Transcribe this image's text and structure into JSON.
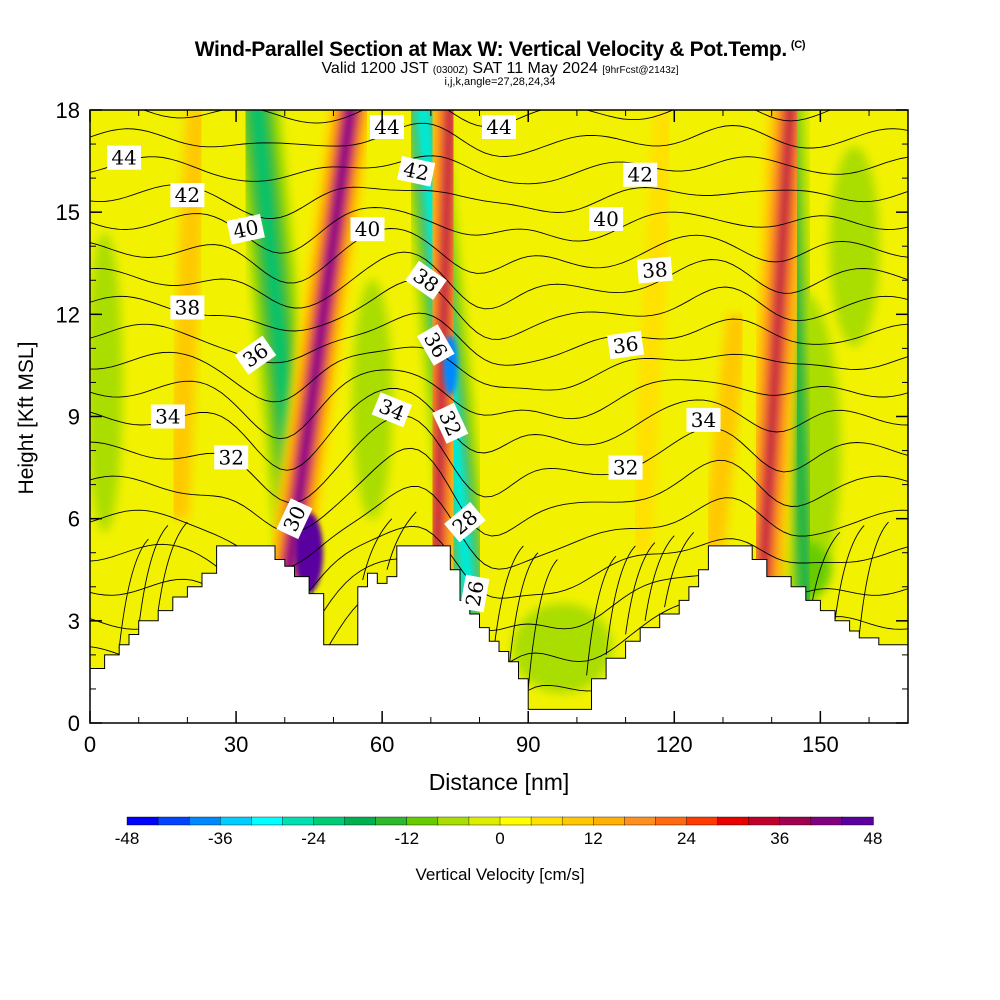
{
  "header": {
    "title": "Wind-Parallel Section at Max W: Vertical Velocity & Pot.Temp.",
    "copyright": "(C)",
    "valid_prefix": "Valid 1200 JST",
    "valid_utc": "(0300Z)",
    "valid_date": "SAT 11 May 2024",
    "fcst_info": "[9hrFcst@2143z]",
    "indices": "i,j,k,angle=27,28,24,34"
  },
  "chart_data": {
    "type": "heatmap",
    "xlabel": "Distance [nm]",
    "ylabel": "Height [Kft MSL]",
    "xlim": [
      0,
      168
    ],
    "ylim": [
      0,
      18
    ],
    "x_ticks": [
      0,
      30,
      60,
      90,
      120,
      150
    ],
    "y_ticks": [
      0,
      3,
      6,
      9,
      12,
      15,
      18
    ],
    "colorbar": {
      "label": "Vertical Velocity [cm/s]",
      "ticks": [
        -48,
        -36,
        -24,
        -12,
        0,
        12,
        24,
        36,
        48
      ],
      "colors": [
        "#0000ff",
        "#0044ff",
        "#0088ff",
        "#00ccff",
        "#00ffff",
        "#00e0b0",
        "#00cc77",
        "#00b050",
        "#2eb82e",
        "#66cc00",
        "#aadd00",
        "#dded00",
        "#ffff00",
        "#ffe000",
        "#ffc800",
        "#ffb000",
        "#ff9020",
        "#ff6a10",
        "#ff3a00",
        "#e80000",
        "#c0002a",
        "#a00050",
        "#800080",
        "#5a00a0"
      ]
    },
    "updraft_bands": [
      {
        "x_bottom": 40,
        "x_top": 54,
        "peak": 44
      },
      {
        "x_bottom": 71,
        "x_top": 74,
        "peak": 36
      },
      {
        "x_bottom": 138,
        "x_top": 144,
        "peak": 36
      }
    ],
    "downdraft_bands": [
      {
        "x_bottom": 44,
        "x_top": 34,
        "peak": -24
      },
      {
        "x_bottom": 78,
        "x_top": 68,
        "peak": -30
      },
      {
        "x_bottom": 147,
        "x_top": 143,
        "peak": -20
      }
    ],
    "terrain": [
      [
        0,
        1.6
      ],
      [
        3,
        1.6
      ],
      [
        3,
        2
      ],
      [
        6,
        2
      ],
      [
        6,
        2.3
      ],
      [
        8,
        2.3
      ],
      [
        8,
        2.6
      ],
      [
        10,
        2.6
      ],
      [
        10,
        3
      ],
      [
        14,
        3
      ],
      [
        14,
        3.3
      ],
      [
        17,
        3.3
      ],
      [
        17,
        3.7
      ],
      [
        20,
        3.7
      ],
      [
        20,
        4
      ],
      [
        23,
        4
      ],
      [
        23,
        4.4
      ],
      [
        26,
        4.4
      ],
      [
        26,
        5.2
      ],
      [
        38,
        5.2
      ],
      [
        38,
        4.8
      ],
      [
        40,
        4.8
      ],
      [
        40,
        4.6
      ],
      [
        42,
        4.6
      ],
      [
        42,
        4.3
      ],
      [
        45,
        4.3
      ],
      [
        45,
        3.8
      ],
      [
        48,
        3.8
      ],
      [
        48,
        2.3
      ],
      [
        55,
        2.3
      ],
      [
        55,
        4.0
      ],
      [
        57,
        4.0
      ],
      [
        57,
        4.4
      ],
      [
        59,
        4.4
      ],
      [
        59,
        4.1
      ],
      [
        61,
        4.1
      ],
      [
        61,
        4.3
      ],
      [
        63,
        4.3
      ],
      [
        63,
        5.2
      ],
      [
        74,
        5.2
      ],
      [
        74,
        4.5
      ],
      [
        76,
        4.5
      ],
      [
        76,
        3.6
      ],
      [
        78,
        3.6
      ],
      [
        78,
        3.2
      ],
      [
        80,
        3.2
      ],
      [
        80,
        2.8
      ],
      [
        82,
        2.8
      ],
      [
        82,
        2.4
      ],
      [
        84,
        2.4
      ],
      [
        84,
        2.1
      ],
      [
        86,
        2.1
      ],
      [
        86,
        1.8
      ],
      [
        88,
        1.8
      ],
      [
        88,
        1.3
      ],
      [
        90,
        1.3
      ],
      [
        90,
        0.4
      ],
      [
        103,
        0.4
      ],
      [
        103,
        1.3
      ],
      [
        106,
        1.3
      ],
      [
        106,
        1.9
      ],
      [
        110,
        1.9
      ],
      [
        110,
        2.4
      ],
      [
        113,
        2.4
      ],
      [
        113,
        2.8
      ],
      [
        117,
        2.8
      ],
      [
        117,
        3.2
      ],
      [
        121,
        3.2
      ],
      [
        121,
        3.6
      ],
      [
        123,
        3.6
      ],
      [
        123,
        4.0
      ],
      [
        125,
        4.0
      ],
      [
        125,
        4.5
      ],
      [
        127,
        4.5
      ],
      [
        127,
        5.2
      ],
      [
        136,
        5.2
      ],
      [
        136,
        4.8
      ],
      [
        139,
        4.8
      ],
      [
        139,
        4.3
      ],
      [
        144,
        4.3
      ],
      [
        144,
        4.0
      ],
      [
        147,
        4.0
      ],
      [
        147,
        3.6
      ],
      [
        150,
        3.6
      ],
      [
        150,
        3.3
      ],
      [
        153,
        3.3
      ],
      [
        153,
        3.0
      ],
      [
        156,
        3.0
      ],
      [
        156,
        2.7
      ],
      [
        158,
        2.7
      ],
      [
        158,
        2.5
      ],
      [
        162,
        2.5
      ],
      [
        162,
        2.3
      ],
      [
        168,
        2.3
      ]
    ],
    "theta_levels": [
      26,
      27,
      28,
      29,
      30,
      31,
      32,
      33,
      34,
      35,
      36,
      37,
      38,
      39,
      40,
      41,
      42,
      43,
      44,
      45
    ],
    "theta_labels": [
      {
        "text": "44",
        "x": 7,
        "y": 16.6,
        "angle": 0
      },
      {
        "text": "42",
        "x": 20,
        "y": 15.5,
        "angle": 0
      },
      {
        "text": "40",
        "x": 32,
        "y": 14.5,
        "angle": -12
      },
      {
        "text": "38",
        "x": 20,
        "y": 12.2,
        "angle": 0
      },
      {
        "text": "36",
        "x": 34,
        "y": 10.8,
        "angle": -35
      },
      {
        "text": "34",
        "x": 16,
        "y": 9.0,
        "angle": 0
      },
      {
        "text": "32",
        "x": 29,
        "y": 7.8,
        "angle": 0
      },
      {
        "text": "30",
        "x": 42,
        "y": 6.0,
        "angle": -65
      },
      {
        "text": "44",
        "x": 61,
        "y": 17.5,
        "angle": 0
      },
      {
        "text": "44",
        "x": 84,
        "y": 17.5,
        "angle": 0
      },
      {
        "text": "42",
        "x": 67,
        "y": 16.2,
        "angle": 12
      },
      {
        "text": "40",
        "x": 57,
        "y": 14.5,
        "angle": 0
      },
      {
        "text": "38",
        "x": 69,
        "y": 13.0,
        "angle": 35
      },
      {
        "text": "36",
        "x": 71,
        "y": 11.1,
        "angle": 60
      },
      {
        "text": "34",
        "x": 62,
        "y": 9.2,
        "angle": 22
      },
      {
        "text": "32",
        "x": 74,
        "y": 8.8,
        "angle": 65
      },
      {
        "text": "28",
        "x": 77,
        "y": 5.9,
        "angle": -40
      },
      {
        "text": "26",
        "x": 79,
        "y": 3.8,
        "angle": -80
      },
      {
        "text": "42",
        "x": 113,
        "y": 16.1,
        "angle": 0
      },
      {
        "text": "40",
        "x": 106,
        "y": 14.8,
        "angle": 0
      },
      {
        "text": "38",
        "x": 116,
        "y": 13.3,
        "angle": -5
      },
      {
        "text": "36",
        "x": 110,
        "y": 11.1,
        "angle": -8
      },
      {
        "text": "34",
        "x": 126,
        "y": 8.9,
        "angle": 0
      },
      {
        "text": "32",
        "x": 110,
        "y": 7.5,
        "angle": 0
      }
    ]
  }
}
